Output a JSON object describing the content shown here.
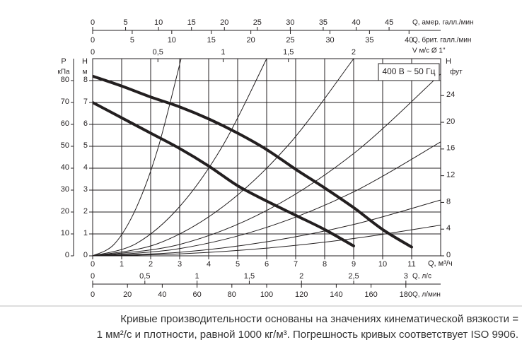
{
  "chart_data": {
    "type": "line",
    "x_title": "Q, м³/ч",
    "xlim": [
      0,
      12
    ],
    "xticks": [
      0,
      1,
      2,
      3,
      4,
      5,
      6,
      7,
      8,
      9,
      10,
      11
    ],
    "y_title": "H",
    "y_unit": "м",
    "ylim": [
      0,
      9
    ],
    "yticks": [
      0,
      1,
      2,
      3,
      4,
      5,
      6,
      7,
      8
    ],
    "grid": true,
    "p_axis": {
      "title": "P",
      "unit": "кПа",
      "lim": [
        0,
        90
      ],
      "ticks": [
        0,
        10,
        20,
        30,
        40,
        50,
        60,
        70,
        80
      ]
    },
    "ft_axis": {
      "title": "H",
      "unit": "фут",
      "lim": [
        0,
        29.53
      ],
      "ticks": [
        0,
        4,
        8,
        12,
        16,
        20,
        24
      ]
    },
    "us_gpm_axis": {
      "title": "Q, амер. галл./мин",
      "lim": [
        0,
        52.83
      ],
      "ticks": [
        0,
        5,
        10,
        15,
        20,
        25,
        30,
        35,
        40,
        45
      ]
    },
    "uk_gpm_axis": {
      "title": "Q, брит. галл./мин",
      "lim": [
        0,
        44.0
      ],
      "ticks": [
        0,
        5,
        10,
        15,
        20,
        25,
        30,
        35,
        40
      ]
    },
    "velocity_axis": {
      "title": "V м/с Ø 1\"",
      "lim": [
        0,
        2.667
      ],
      "ticks": [
        0,
        {
          "value": 0.5,
          "label": "0,5"
        },
        1,
        {
          "value": 1.5,
          "label": "1,5"
        },
        2
      ]
    },
    "lps_axis": {
      "title": "Q, л/с",
      "lim": [
        0,
        3.333
      ],
      "ticks": [
        0,
        {
          "value": 0.5,
          "label": "0,5"
        },
        1,
        {
          "value": 1.5,
          "label": "1,5"
        },
        2,
        {
          "value": 2.5,
          "label": "2,5"
        },
        3
      ]
    },
    "lpm_axis": {
      "title": "Q, л/мин",
      "lim": [
        0,
        200
      ],
      "ticks": [
        0,
        20,
        40,
        60,
        80,
        100,
        120,
        140,
        160,
        180
      ]
    },
    "annotation": "400 В ~ 50 Гц",
    "series": [
      {
        "color": "#231f20",
        "line_width": 4,
        "x": [
          0,
          1,
          2,
          3,
          4,
          5,
          6,
          7,
          8,
          9,
          10,
          11
        ],
        "values": [
          8.2,
          7.75,
          7.25,
          6.8,
          6.25,
          5.6,
          4.85,
          3.95,
          3.1,
          2.2,
          1.2,
          0.4
        ]
      },
      {
        "color": "#231f20",
        "line_width": 4,
        "x": [
          0,
          1,
          2,
          3,
          4,
          5,
          6,
          7,
          8,
          9
        ],
        "values": [
          7.0,
          6.3,
          5.6,
          4.9,
          4.1,
          3.2,
          2.5,
          1.85,
          1.2,
          0.45
        ]
      },
      {
        "color": "#231f20",
        "line_width": 1,
        "x": [
          0,
          0.75,
          1.5,
          2.25,
          3.05
        ],
        "values": [
          0,
          0.54,
          2.18,
          4.9,
          9
        ]
      },
      {
        "color": "#231f20",
        "line_width": 1,
        "x": [
          0,
          1.5,
          3,
          4.5,
          6
        ],
        "values": [
          0,
          0.56,
          2.25,
          5.06,
          9
        ]
      },
      {
        "color": "#231f20",
        "line_width": 1,
        "x": [
          0,
          2.25,
          4.5,
          6.75,
          9
        ],
        "values": [
          0,
          0.56,
          2.25,
          5.06,
          9
        ]
      },
      {
        "color": "#231f20",
        "line_width": 1,
        "x": [
          0,
          3,
          6,
          9,
          12
        ],
        "values": [
          0,
          0.52,
          2.07,
          4.67,
          8.3
        ]
      },
      {
        "color": "#231f20",
        "line_width": 1,
        "x": [
          0,
          3,
          6,
          9,
          12
        ],
        "values": [
          0,
          0.33,
          1.3,
          2.92,
          5.2
        ]
      },
      {
        "color": "#231f20",
        "line_width": 1,
        "x": [
          0,
          3,
          6,
          9,
          12
        ],
        "values": [
          0,
          0.16,
          0.64,
          1.43,
          2.55
        ]
      },
      {
        "color": "#231f20",
        "line_width": 1,
        "x": [
          0,
          3,
          6,
          9,
          12
        ],
        "values": [
          0,
          0.09,
          0.35,
          0.79,
          1.4
        ]
      }
    ],
    "caption": [
      "Кривые производительности основаны на значениях кинематической вязкости =",
      "1 мм²/с и плотности, равной 1000 кг/м³. Погрешность кривых соответствует ISO 9906."
    ]
  }
}
